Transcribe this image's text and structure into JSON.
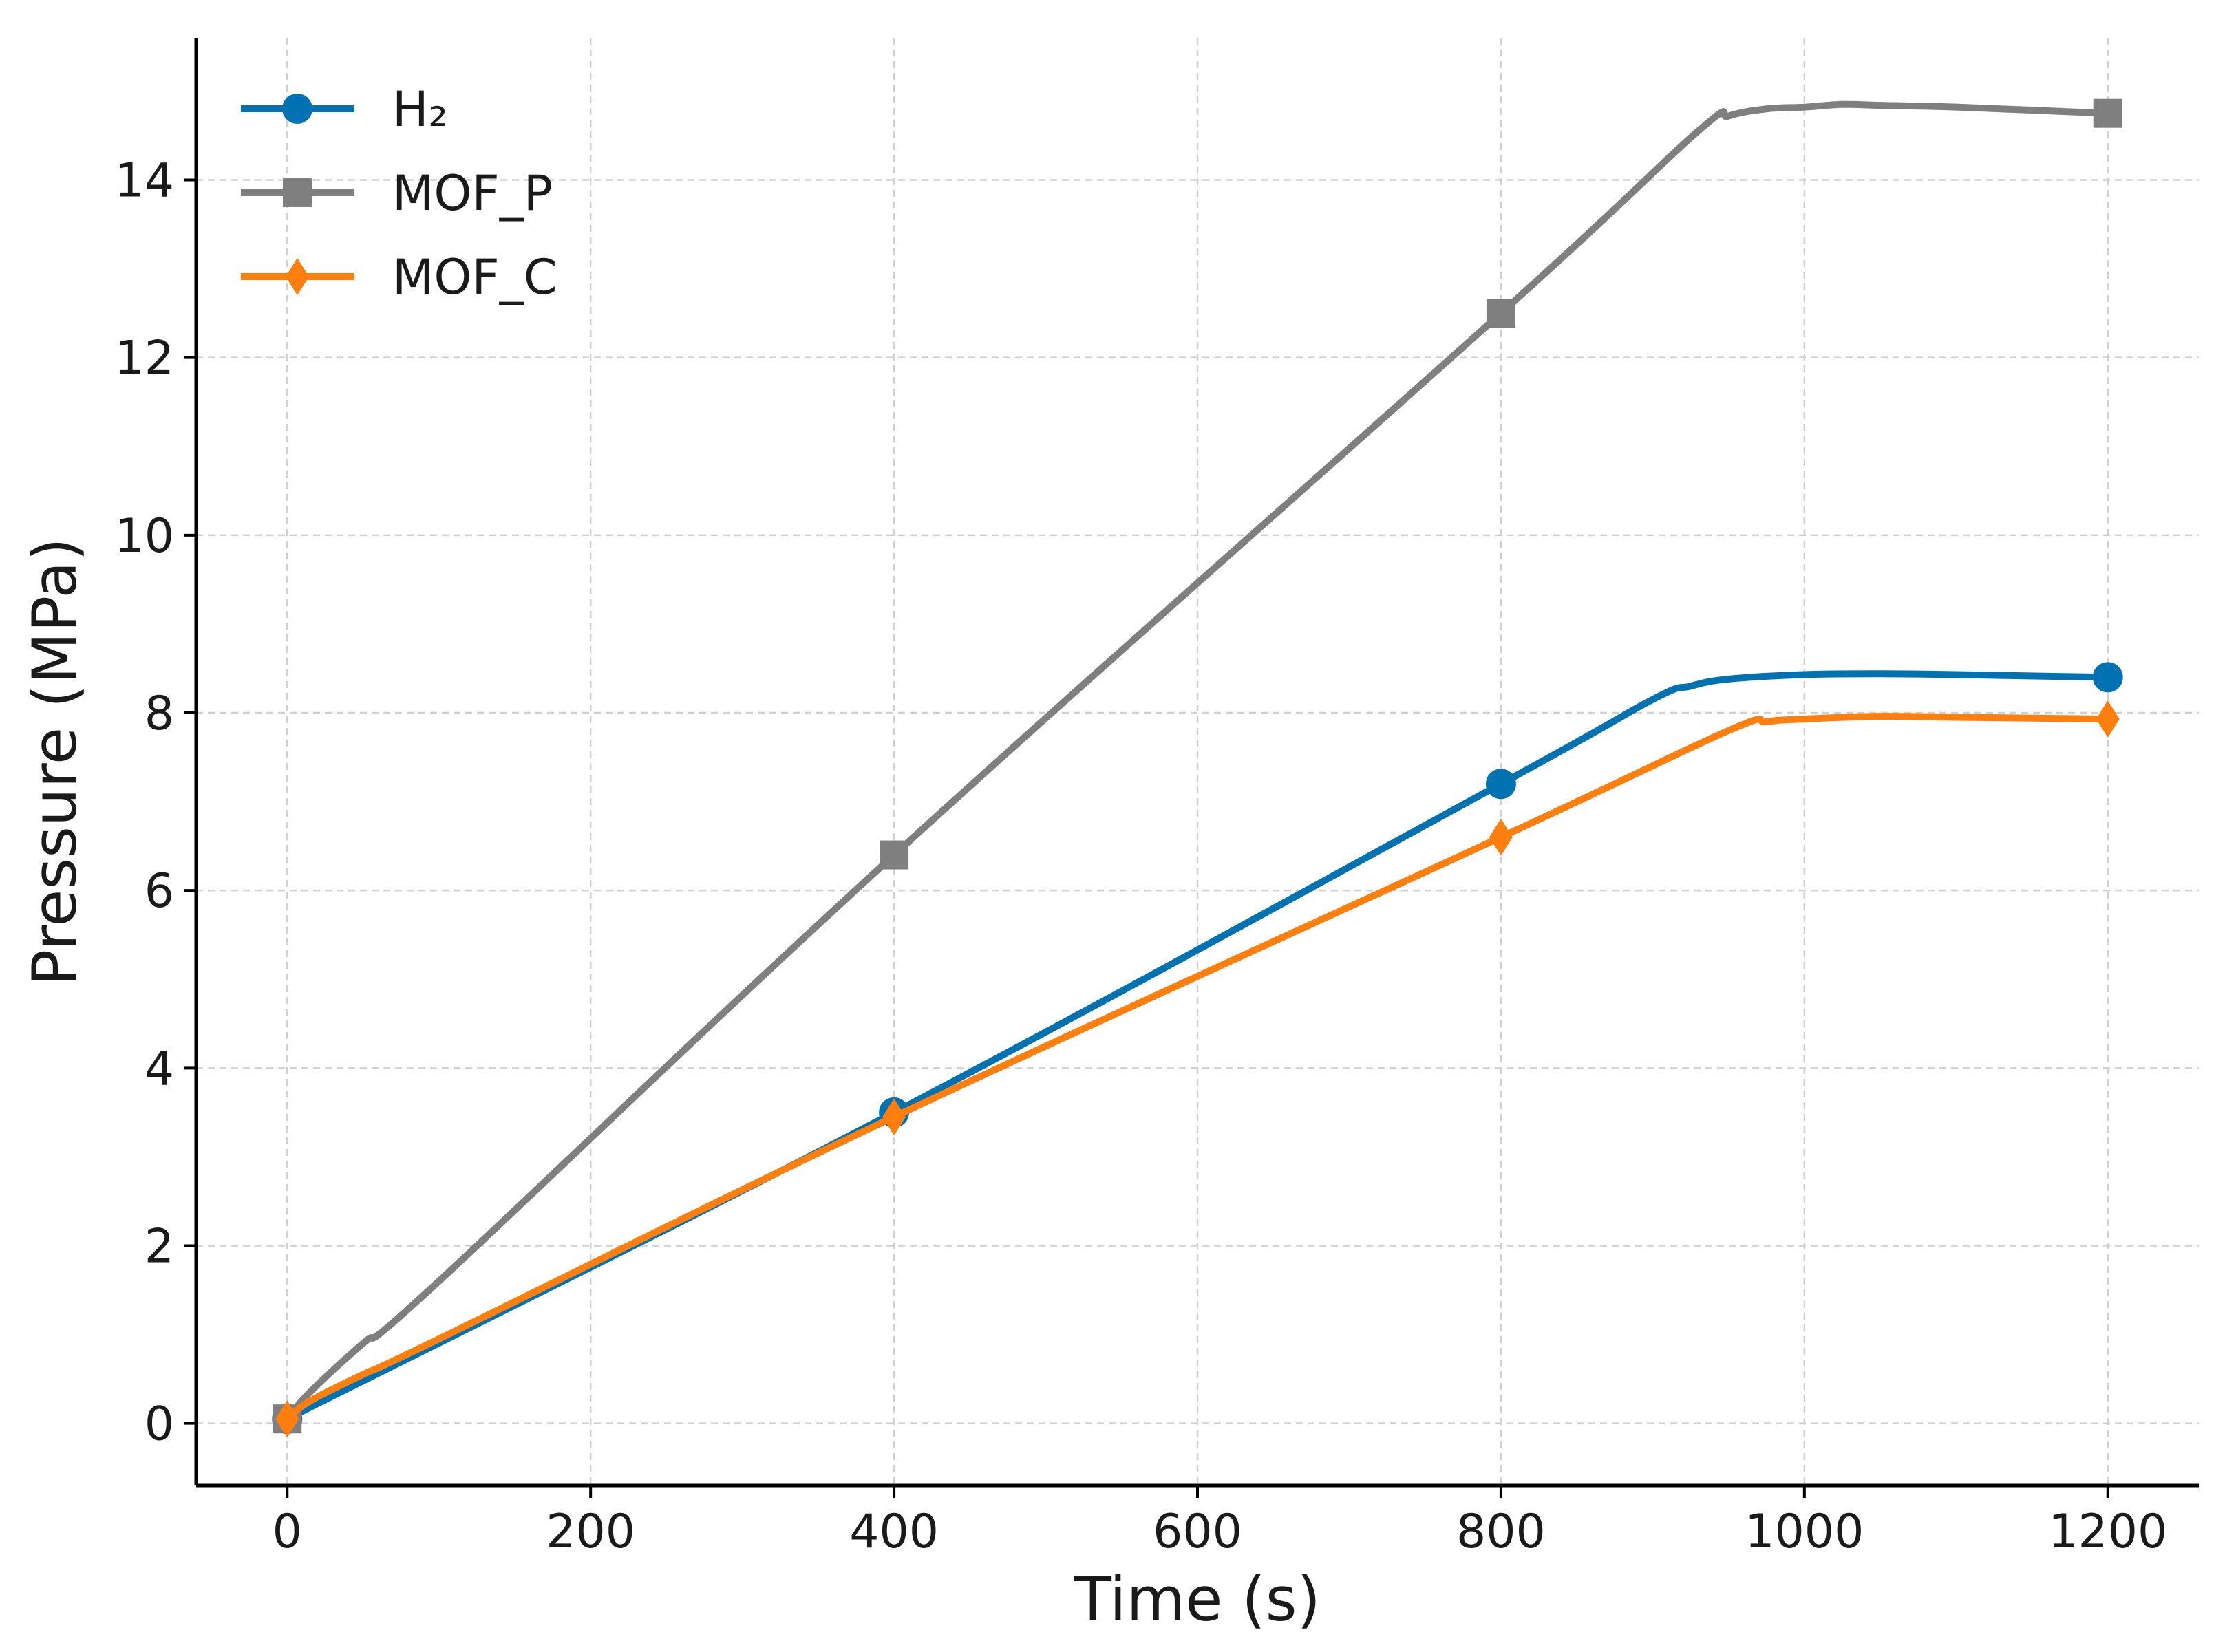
{
  "chart_data": {
    "type": "line",
    "title": "",
    "xlabel": "Time (s)",
    "ylabel": "Pressure (MPa)",
    "xlim": [
      -60,
      1260
    ],
    "ylim": [
      -0.7,
      15.6
    ],
    "xticks": [
      0,
      200,
      400,
      600,
      800,
      1000,
      1200
    ],
    "yticks": [
      0,
      2,
      4,
      6,
      8,
      10,
      12,
      14
    ],
    "grid": true,
    "legend_position": "top-left",
    "series": [
      {
        "name": "H₂",
        "color": "#0072B2",
        "marker": "circle",
        "markers": [
          [
            0,
            0.05
          ],
          [
            400,
            3.5
          ],
          [
            800,
            7.2
          ],
          [
            1200,
            8.4
          ]
        ],
        "curve": [
          [
            0,
            0.05
          ],
          [
            400,
            3.5
          ],
          [
            800,
            7.2
          ],
          [
            900,
            8.15
          ],
          [
            925,
            8.3
          ],
          [
            950,
            8.38
          ],
          [
            1000,
            8.43
          ],
          [
            1050,
            8.44
          ],
          [
            1100,
            8.43
          ],
          [
            1200,
            8.4
          ]
        ]
      },
      {
        "name": "MOF_P",
        "color": "#7f7f7f",
        "marker": "square",
        "markers": [
          [
            0,
            0.05
          ],
          [
            400,
            6.4
          ],
          [
            800,
            12.5
          ],
          [
            1200,
            14.75
          ]
        ],
        "curve": [
          [
            0,
            0.05
          ],
          [
            15,
            0.35
          ],
          [
            50,
            0.9
          ],
          [
            100,
            1.6
          ],
          [
            400,
            6.4
          ],
          [
            800,
            12.5
          ],
          [
            930,
            14.55
          ],
          [
            950,
            14.72
          ],
          [
            975,
            14.8
          ],
          [
            1000,
            14.82
          ],
          [
            1025,
            14.85
          ],
          [
            1050,
            14.84
          ],
          [
            1100,
            14.82
          ],
          [
            1200,
            14.75
          ]
        ]
      },
      {
        "name": "MOF_C",
        "color": "#ff7f0e",
        "marker": "diamond",
        "markers": [
          [
            0,
            0.05
          ],
          [
            400,
            3.45
          ],
          [
            800,
            6.6
          ],
          [
            1200,
            7.93
          ]
        ],
        "curve": [
          [
            0,
            0.05
          ],
          [
            15,
            0.25
          ],
          [
            50,
            0.55
          ],
          [
            100,
            0.95
          ],
          [
            400,
            3.45
          ],
          [
            800,
            6.6
          ],
          [
            950,
            7.8
          ],
          [
            975,
            7.9
          ],
          [
            1000,
            7.93
          ],
          [
            1050,
            7.96
          ],
          [
            1100,
            7.95
          ],
          [
            1200,
            7.93
          ]
        ]
      }
    ]
  }
}
